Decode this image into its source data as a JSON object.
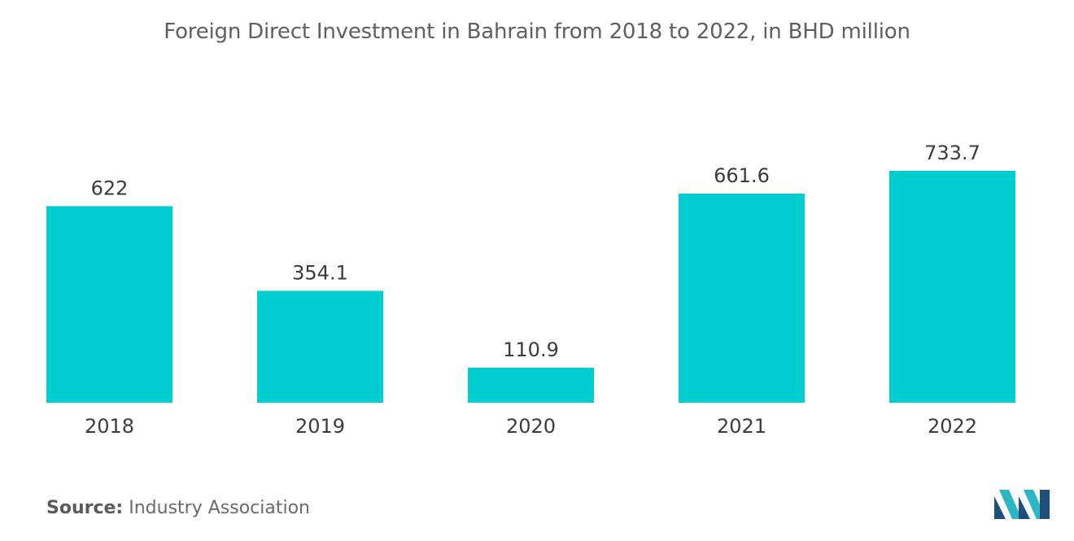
{
  "chart_data": {
    "type": "bar",
    "title": "Foreign Direct Investment in Bahrain from 2018 to 2022, in BHD million",
    "categories": [
      "2018",
      "2019",
      "2020",
      "2021",
      "2022"
    ],
    "values": [
      622,
      354.1,
      110.9,
      661.6,
      733.7
    ],
    "value_labels": [
      "622",
      "354.1",
      "110.9",
      "661.6",
      "733.7"
    ],
    "xlabel": "",
    "ylabel": "",
    "ylim": [
      0,
      733.7
    ],
    "grid": false,
    "legend": "none",
    "bar_color": "#00cdd0"
  },
  "footer": {
    "source_label": "Source:",
    "source_text": "Industry Association"
  },
  "logo": {
    "icon": "mordor-intelligence-logo-icon",
    "colors": [
      "#1f4e79",
      "#2bb6c4"
    ]
  }
}
